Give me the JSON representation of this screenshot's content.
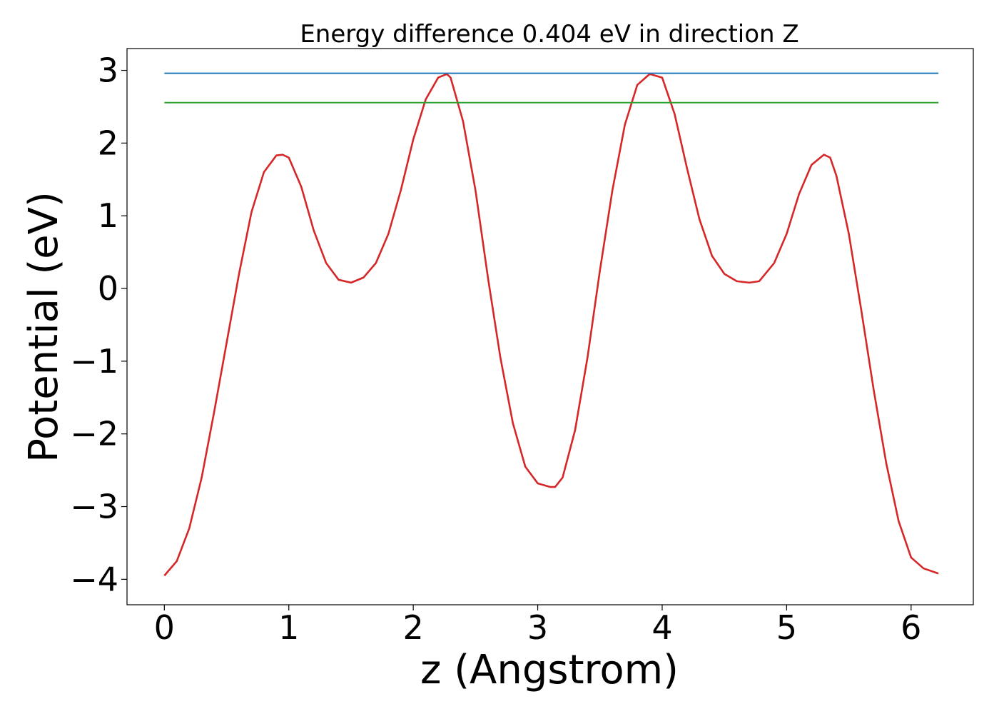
{
  "chart_data": {
    "type": "line",
    "title": "Energy difference 0.404 eV in direction Z",
    "xlabel": "z (Angstrom)",
    "ylabel": "Potential (eV)",
    "xlim": [
      -0.3,
      6.5
    ],
    "ylim": [
      -4.35,
      3.3
    ],
    "xticks": [
      0,
      1,
      2,
      3,
      4,
      5,
      6
    ],
    "yticks": [
      -4,
      -3,
      -2,
      -1,
      0,
      1,
      2,
      3
    ],
    "grid": false,
    "series": [
      {
        "color": "#d62728",
        "x": [
          0.0,
          0.1,
          0.2,
          0.3,
          0.4,
          0.5,
          0.6,
          0.7,
          0.8,
          0.9,
          0.95,
          1.0,
          1.1,
          1.2,
          1.3,
          1.4,
          1.5,
          1.6,
          1.7,
          1.8,
          1.9,
          2.0,
          2.1,
          2.2,
          2.27,
          2.3,
          2.4,
          2.5,
          2.6,
          2.7,
          2.8,
          2.9,
          3.0,
          3.1,
          3.14,
          3.2,
          3.3,
          3.4,
          3.5,
          3.6,
          3.7,
          3.8,
          3.9,
          4.0,
          4.1,
          4.2,
          4.3,
          4.4,
          4.5,
          4.6,
          4.7,
          4.78,
          4.9,
          5.0,
          5.1,
          5.2,
          5.3,
          5.35,
          5.4,
          5.5,
          5.6,
          5.7,
          5.8,
          5.9,
          6.0,
          6.1,
          6.22
        ],
        "y": [
          -3.95,
          -3.75,
          -3.3,
          -2.6,
          -1.7,
          -0.75,
          0.2,
          1.05,
          1.6,
          1.83,
          1.84,
          1.8,
          1.4,
          0.8,
          0.35,
          0.12,
          0.08,
          0.15,
          0.35,
          0.75,
          1.35,
          2.05,
          2.6,
          2.9,
          2.95,
          2.9,
          2.3,
          1.35,
          0.15,
          -0.95,
          -1.85,
          -2.45,
          -2.68,
          -2.73,
          -2.73,
          -2.6,
          -1.95,
          -0.95,
          0.25,
          1.35,
          2.25,
          2.8,
          2.95,
          2.9,
          2.4,
          1.65,
          0.95,
          0.45,
          0.2,
          0.1,
          0.08,
          0.1,
          0.35,
          0.75,
          1.3,
          1.7,
          1.84,
          1.8,
          1.55,
          0.75,
          -0.3,
          -1.4,
          -2.4,
          -3.2,
          -3.7,
          -3.85,
          -3.92
        ]
      },
      {
        "color": "#1f77b4",
        "x": [
          0.0,
          6.22
        ],
        "y": [
          2.96,
          2.96
        ]
      },
      {
        "color": "#2ca02c",
        "x": [
          0.0,
          6.22
        ],
        "y": [
          2.556,
          2.556
        ]
      }
    ]
  }
}
